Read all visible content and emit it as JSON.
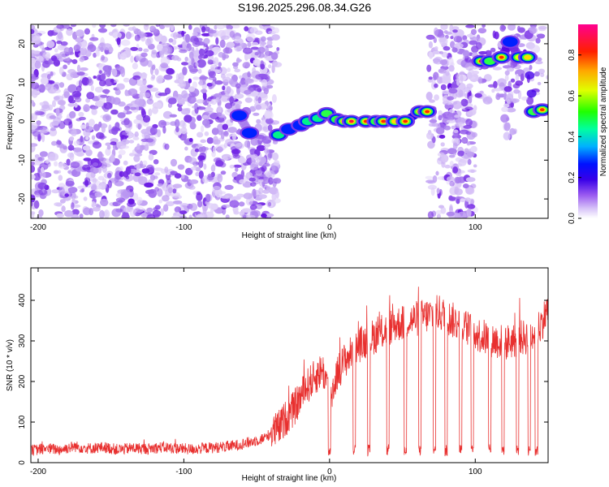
{
  "title": "S196.2025.296.08.34.G26",
  "chart_data": [
    {
      "type": "heatmap",
      "title": "S196.2025.296.08.34.G26",
      "xlabel": "Height of straight line (km)",
      "ylabel": "Frequency (Hz)",
      "xlim": [
        -205,
        150
      ],
      "ylim": [
        -25,
        25
      ],
      "xticks": [
        -200,
        -100,
        0,
        100
      ],
      "yticks": [
        -20,
        -10,
        0,
        10,
        20
      ],
      "colorbar": {
        "label": "Normalized spectral amplitude",
        "range": [
          0,
          0.95
        ],
        "ticks": [
          0.0,
          0.2,
          0.4,
          0.6,
          0.8
        ],
        "colors": [
          "#ffffff",
          "#b48ef0",
          "#5a00e0",
          "#0000ff",
          "#00c8ff",
          "#00ff60",
          "#a0ff00",
          "#ffff00",
          "#ffa000",
          "#ff2000",
          "#ff0080"
        ]
      },
      "ridge": [
        {
          "x": -62,
          "f": 1.5,
          "a": 0.35
        },
        {
          "x": -55,
          "f": -3.0,
          "a": 0.3
        },
        {
          "x": -35,
          "f": -3.5,
          "a": 0.45
        },
        {
          "x": -28,
          "f": -2.0,
          "a": 0.4
        },
        {
          "x": -20,
          "f": -1.0,
          "a": 0.4
        },
        {
          "x": -15,
          "f": 0.0,
          "a": 0.45
        },
        {
          "x": -8,
          "f": 0.8,
          "a": 0.45
        },
        {
          "x": -2,
          "f": 2.0,
          "a": 0.5
        },
        {
          "x": 5,
          "f": 0.5,
          "a": 0.55
        },
        {
          "x": 10,
          "f": 0.0,
          "a": 0.8
        },
        {
          "x": 15,
          "f": 0.0,
          "a": 0.9
        },
        {
          "x": 25,
          "f": 0.0,
          "a": 0.85
        },
        {
          "x": 32,
          "f": 0.0,
          "a": 0.6
        },
        {
          "x": 37,
          "f": 0.0,
          "a": 0.85
        },
        {
          "x": 45,
          "f": 0.0,
          "a": 0.75
        },
        {
          "x": 52,
          "f": 0.0,
          "a": 0.85
        },
        {
          "x": 62,
          "f": 2.5,
          "a": 0.7
        },
        {
          "x": 67,
          "f": 2.5,
          "a": 0.85
        },
        {
          "x": 104,
          "f": 15.5,
          "a": 0.85
        },
        {
          "x": 110,
          "f": 15.5,
          "a": 0.6
        },
        {
          "x": 118,
          "f": 16.5,
          "a": 0.85
        },
        {
          "x": 124,
          "f": 20.5,
          "a": 0.35
        },
        {
          "x": 130,
          "f": 16.5,
          "a": 0.65
        },
        {
          "x": 136,
          "f": 16.5,
          "a": 0.75
        },
        {
          "x": 140,
          "f": 2.5,
          "a": 0.55
        },
        {
          "x": 146,
          "f": 3.0,
          "a": 0.85
        }
      ]
    },
    {
      "type": "line",
      "xlabel": "Height of straight line (km)",
      "ylabel": "SNR (10 * v/v)",
      "xlim": [
        -205,
        150
      ],
      "ylim": [
        0,
        480
      ],
      "xticks": [
        -200,
        -100,
        0,
        100
      ],
      "yticks": [
        0,
        100,
        200,
        300,
        400
      ],
      "line_color": "#e8302f",
      "series": [
        {
          "name": "SNR",
          "x": [
            -205,
            -195,
            -185,
            -175,
            -165,
            -155,
            -145,
            -135,
            -125,
            -115,
            -105,
            -95,
            -85,
            -75,
            -65,
            -55,
            -45,
            -35,
            -30,
            -25,
            -20,
            -15,
            -10,
            -5,
            -2,
            0,
            5,
            10,
            15,
            20,
            25,
            30,
            35,
            40,
            45,
            50,
            55,
            60,
            65,
            70,
            75,
            80,
            85,
            90,
            95,
            100,
            105,
            110,
            115,
            120,
            125,
            130,
            135,
            140,
            145,
            150
          ],
          "values": [
            30,
            35,
            32,
            40,
            35,
            38,
            32,
            36,
            34,
            38,
            35,
            33,
            36,
            38,
            42,
            50,
            60,
            85,
            110,
            130,
            160,
            190,
            210,
            230,
            200,
            150,
            220,
            250,
            270,
            290,
            300,
            310,
            320,
            330,
            340,
            345,
            350,
            355,
            360,
            365,
            370,
            360,
            350,
            340,
            330,
            320,
            310,
            305,
            300,
            295,
            300,
            305,
            310,
            320,
            340,
            380
          ]
        }
      ],
      "dips_to": 15,
      "dip_positions": [
        0,
        17,
        27,
        40,
        52,
        62,
        72,
        80,
        90,
        98,
        110,
        119,
        129,
        137,
        142
      ]
    }
  ]
}
